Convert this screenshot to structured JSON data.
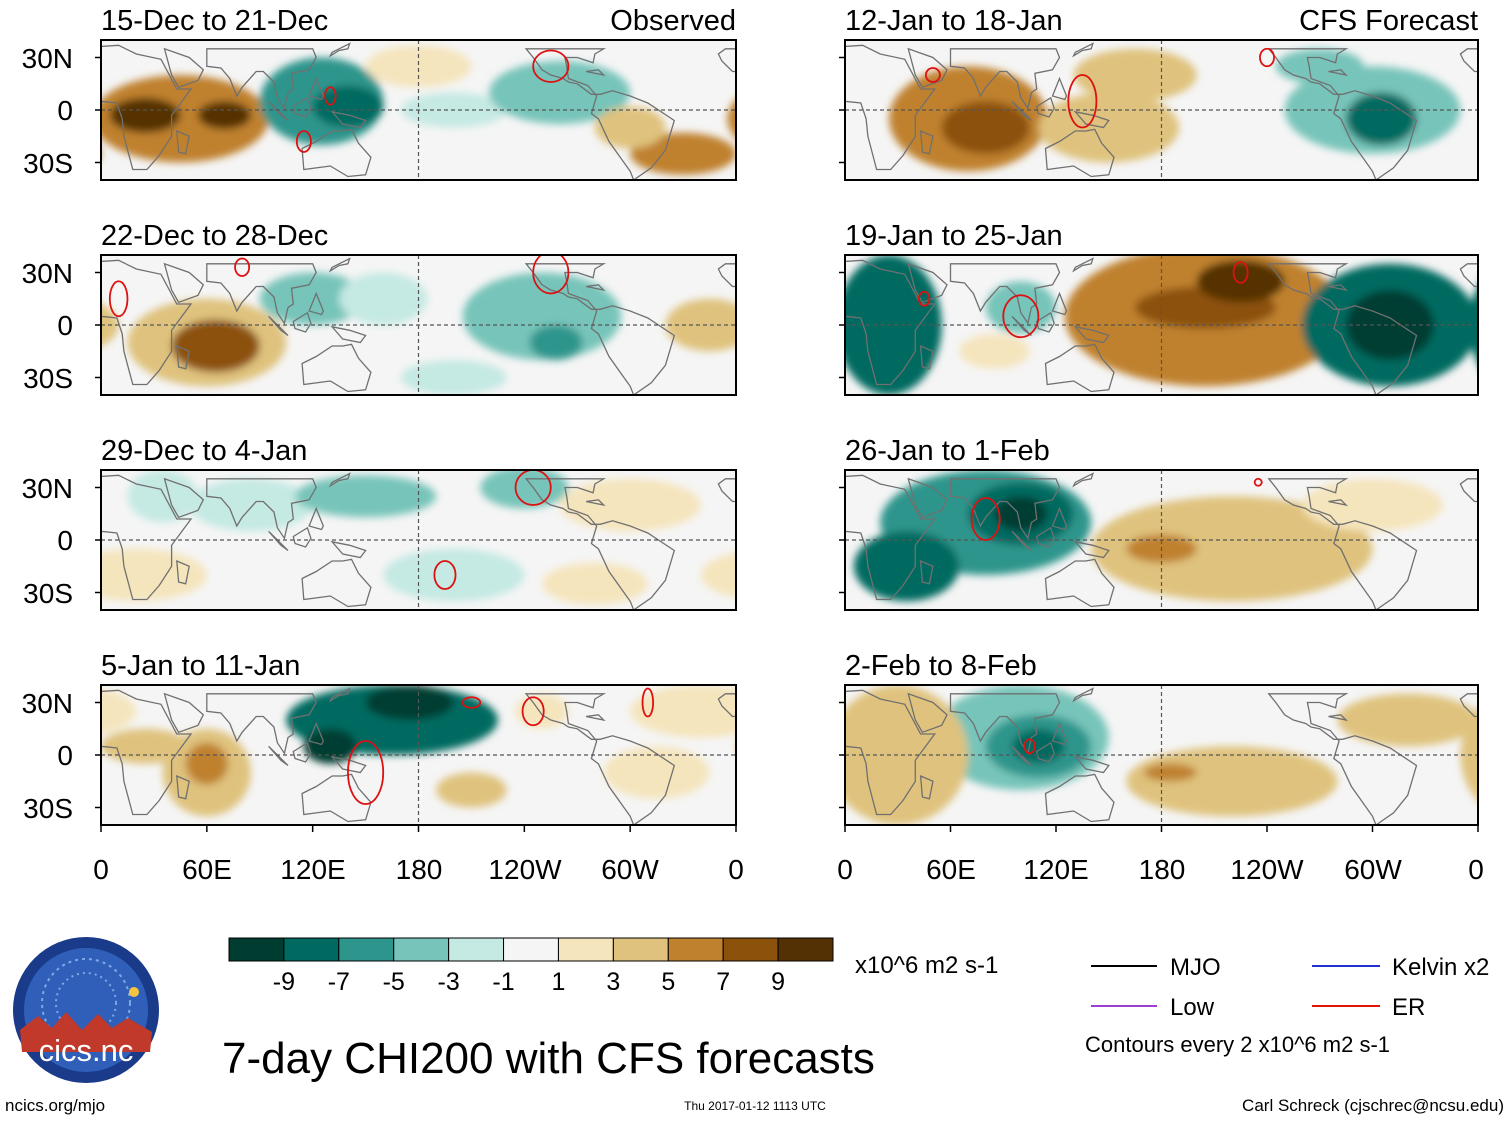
{
  "main_title": "7-day CHI200 with CFS forecasts",
  "footer": {
    "left": "ncics.org/mjo",
    "center": "Thu 2017-01-12 1113 UTC",
    "right": "Carl Schreck (cjschrec@ncsu.edu)"
  },
  "logo": {
    "text": "cics.nc",
    "ring_text": "Cooperative Institute for Climate and Satellites"
  },
  "panels": {
    "observed": [
      {
        "title": "15-Dec to 21-Dec",
        "tag": "Observed"
      },
      {
        "title": "22-Dec to 28-Dec"
      },
      {
        "title": "29-Dec to 4-Jan"
      },
      {
        "title": "5-Jan to 11-Jan"
      }
    ],
    "forecast": [
      {
        "title": "12-Jan to 18-Jan",
        "tag": "CFS Forecast"
      },
      {
        "title": "19-Jan to 25-Jan"
      },
      {
        "title": "26-Jan to 1-Feb"
      },
      {
        "title": "2-Feb to 8-Feb"
      }
    ]
  },
  "lat_labels": [
    "30N",
    "0",
    "30S"
  ],
  "lon_labels": [
    "0",
    "60E",
    "120E",
    "180",
    "120W",
    "60W",
    "0"
  ],
  "colorbar": {
    "colors": [
      "#003d30",
      "#006a60",
      "#2e958c",
      "#77c4ba",
      "#c5e9e3",
      "#f5f5f5",
      "#f5e5bd",
      "#dfc27d",
      "#bf812d",
      "#8c510a",
      "#543005"
    ],
    "labels": [
      "-9",
      "-7",
      "-5",
      "-3",
      "-1",
      "1",
      "3",
      "5",
      "7",
      "9"
    ],
    "units": "x10^6 m2 s-1"
  },
  "legend": {
    "items": [
      {
        "label": "MJO",
        "color": "#000000"
      },
      {
        "label": "Kelvin x2",
        "color": "#1f2fd0"
      },
      {
        "label": "Low",
        "color": "#9b3fd6"
      },
      {
        "label": "ER",
        "color": "#e3120b"
      }
    ],
    "contour_note": "Contours every 2 x10^6 m2 s-1"
  },
  "map_style": {
    "coast": "#707070",
    "grid": "#555555",
    "frame": "#000000",
    "feature": "#dd1111"
  },
  "maps": [
    {
      "blobs": [
        {
          "lon": 45,
          "lat": -5,
          "rx": 50,
          "ry": 25,
          "level": 8
        },
        {
          "lon": 25,
          "lat": -3,
          "rx": 20,
          "ry": 10,
          "level": 10
        },
        {
          "lon": 70,
          "lat": -3,
          "rx": 15,
          "ry": 8,
          "level": 10
        },
        {
          "lon": 125,
          "lat": 5,
          "rx": 35,
          "ry": 25,
          "level": 2
        },
        {
          "lon": 140,
          "lat": 2,
          "rx": 20,
          "ry": 12,
          "level": 1
        },
        {
          "lon": 200,
          "lat": 0,
          "rx": 30,
          "ry": 10,
          "level": 4
        },
        {
          "lon": 260,
          "lat": 10,
          "rx": 40,
          "ry": 18,
          "level": 3
        },
        {
          "lon": 330,
          "lat": -25,
          "rx": 30,
          "ry": 12,
          "level": 8
        },
        {
          "lon": 300,
          "lat": -10,
          "rx": 20,
          "ry": 12,
          "level": 7
        },
        {
          "lon": 180,
          "lat": 25,
          "rx": 30,
          "ry": 12,
          "level": 6
        }
      ],
      "features": [
        {
          "lon": 130,
          "lat": 8,
          "rx": 3,
          "ry": 5
        },
        {
          "lon": 115,
          "lat": -18,
          "rx": 4,
          "ry": 6
        },
        {
          "lon": 255,
          "lat": 25,
          "rx": 10,
          "ry": 9
        }
      ]
    },
    {
      "blobs": [
        {
          "lon": 60,
          "lat": -10,
          "rx": 45,
          "ry": 25,
          "level": 7
        },
        {
          "lon": 65,
          "lat": -12,
          "rx": 25,
          "ry": 15,
          "level": 9
        },
        {
          "lon": 120,
          "lat": 15,
          "rx": 30,
          "ry": 15,
          "level": 3
        },
        {
          "lon": 160,
          "lat": 15,
          "rx": 25,
          "ry": 15,
          "level": 4
        },
        {
          "lon": 250,
          "lat": 5,
          "rx": 45,
          "ry": 25,
          "level": 3
        },
        {
          "lon": 258,
          "lat": -10,
          "rx": 15,
          "ry": 10,
          "level": 2
        },
        {
          "lon": 200,
          "lat": -30,
          "rx": 30,
          "ry": 10,
          "level": 4
        },
        {
          "lon": 345,
          "lat": 0,
          "rx": 25,
          "ry": 15,
          "level": 7
        }
      ],
      "features": [
        {
          "lon": 10,
          "lat": 15,
          "rx": 5,
          "ry": 10
        },
        {
          "lon": 255,
          "lat": 30,
          "rx": 10,
          "ry": 12
        },
        {
          "lon": 80,
          "lat": 33,
          "rx": 4,
          "ry": 5
        }
      ]
    },
    {
      "blobs": [
        {
          "lon": 35,
          "lat": 25,
          "rx": 20,
          "ry": 15,
          "level": 4
        },
        {
          "lon": 85,
          "lat": 20,
          "rx": 35,
          "ry": 15,
          "level": 4
        },
        {
          "lon": 150,
          "lat": 25,
          "rx": 40,
          "ry": 12,
          "level": 3
        },
        {
          "lon": 240,
          "lat": 30,
          "rx": 25,
          "ry": 12,
          "level": 3
        },
        {
          "lon": 20,
          "lat": -20,
          "rx": 40,
          "ry": 15,
          "level": 6
        },
        {
          "lon": 200,
          "lat": -20,
          "rx": 40,
          "ry": 15,
          "level": 4
        },
        {
          "lon": 300,
          "lat": 20,
          "rx": 40,
          "ry": 15,
          "level": 6
        },
        {
          "lon": 280,
          "lat": -25,
          "rx": 30,
          "ry": 12,
          "level": 6
        }
      ],
      "features": [
        {
          "lon": 245,
          "lat": 30,
          "rx": 10,
          "ry": 10
        },
        {
          "lon": 195,
          "lat": -20,
          "rx": 6,
          "ry": 8
        }
      ]
    },
    {
      "blobs": [
        {
          "lon": 165,
          "lat": 20,
          "rx": 60,
          "ry": 20,
          "level": 1
        },
        {
          "lon": 175,
          "lat": 30,
          "rx": 25,
          "ry": 10,
          "level": 0
        },
        {
          "lon": 130,
          "lat": 5,
          "rx": 15,
          "ry": 10,
          "level": 0
        },
        {
          "lon": 60,
          "lat": -10,
          "rx": 25,
          "ry": 25,
          "level": 7
        },
        {
          "lon": 60,
          "lat": -5,
          "rx": 12,
          "ry": 12,
          "level": 8
        },
        {
          "lon": 25,
          "lat": 5,
          "rx": 25,
          "ry": 10,
          "level": 7
        },
        {
          "lon": 340,
          "lat": 25,
          "rx": 40,
          "ry": 15,
          "level": 6
        },
        {
          "lon": 315,
          "lat": -10,
          "rx": 30,
          "ry": 15,
          "level": 6
        },
        {
          "lon": 210,
          "lat": -20,
          "rx": 20,
          "ry": 10,
          "level": 7
        },
        {
          "lon": 250,
          "lat": 25,
          "rx": 15,
          "ry": 10,
          "level": 6
        }
      ],
      "features": [
        {
          "lon": 150,
          "lat": -10,
          "rx": 10,
          "ry": 18
        },
        {
          "lon": 210,
          "lat": 30,
          "rx": 5,
          "ry": 3
        },
        {
          "lon": 245,
          "lat": 25,
          "rx": 6,
          "ry": 8
        },
        {
          "lon": 310,
          "lat": 30,
          "rx": 3,
          "ry": 8
        }
      ]
    },
    {
      "blobs": [
        {
          "lon": 70,
          "lat": -5,
          "rx": 45,
          "ry": 30,
          "level": 8
        },
        {
          "lon": 80,
          "lat": -10,
          "rx": 25,
          "ry": 15,
          "level": 9
        },
        {
          "lon": 150,
          "lat": -10,
          "rx": 40,
          "ry": 20,
          "level": 7
        },
        {
          "lon": 165,
          "lat": 20,
          "rx": 35,
          "ry": 15,
          "level": 7
        },
        {
          "lon": 300,
          "lat": 0,
          "rx": 50,
          "ry": 25,
          "level": 3
        },
        {
          "lon": 305,
          "lat": -5,
          "rx": 20,
          "ry": 15,
          "level": 1
        },
        {
          "lon": 270,
          "lat": 25,
          "rx": 25,
          "ry": 10,
          "level": 3
        }
      ],
      "features": [
        {
          "lon": 135,
          "lat": 5,
          "rx": 8,
          "ry": 15
        },
        {
          "lon": 50,
          "lat": 20,
          "rx": 4,
          "ry": 4
        },
        {
          "lon": 240,
          "lat": 30,
          "rx": 4,
          "ry": 5
        }
      ]
    },
    {
      "blobs": [
        {
          "lon": 25,
          "lat": 0,
          "rx": 30,
          "ry": 40,
          "level": 1
        },
        {
          "lon": 205,
          "lat": 5,
          "rx": 80,
          "ry": 40,
          "level": 8
        },
        {
          "lon": 205,
          "lat": 10,
          "rx": 40,
          "ry": 12,
          "level": 9
        },
        {
          "lon": 225,
          "lat": 25,
          "rx": 25,
          "ry": 12,
          "level": 10
        },
        {
          "lon": 310,
          "lat": 0,
          "rx": 50,
          "ry": 35,
          "level": 1
        },
        {
          "lon": 310,
          "lat": 0,
          "rx": 25,
          "ry": 20,
          "level": 0
        },
        {
          "lon": 100,
          "lat": 10,
          "rx": 20,
          "ry": 15,
          "level": 3
        },
        {
          "lon": 85,
          "lat": -15,
          "rx": 20,
          "ry": 10,
          "level": 6
        }
      ],
      "features": [
        {
          "lon": 100,
          "lat": 5,
          "rx": 10,
          "ry": 12
        },
        {
          "lon": 225,
          "lat": 30,
          "rx": 4,
          "ry": 6
        },
        {
          "lon": 45,
          "lat": 15,
          "rx": 3,
          "ry": 4
        }
      ]
    },
    {
      "blobs": [
        {
          "lon": 80,
          "lat": 10,
          "rx": 60,
          "ry": 30,
          "level": 2
        },
        {
          "lon": 100,
          "lat": 15,
          "rx": 30,
          "ry": 18,
          "level": 1
        },
        {
          "lon": 100,
          "lat": 15,
          "rx": 15,
          "ry": 10,
          "level": 0
        },
        {
          "lon": 35,
          "lat": -15,
          "rx": 30,
          "ry": 20,
          "level": 1
        },
        {
          "lon": 220,
          "lat": -5,
          "rx": 80,
          "ry": 30,
          "level": 7
        },
        {
          "lon": 180,
          "lat": -5,
          "rx": 20,
          "ry": 8,
          "level": 8
        },
        {
          "lon": 300,
          "lat": 20,
          "rx": 40,
          "ry": 15,
          "level": 6
        }
      ],
      "features": [
        {
          "lon": 80,
          "lat": 12,
          "rx": 8,
          "ry": 12
        },
        {
          "lon": 235,
          "lat": 33,
          "rx": 2,
          "ry": 2
        }
      ]
    },
    {
      "blobs": [
        {
          "lon": 100,
          "lat": 10,
          "rx": 50,
          "ry": 30,
          "level": 3
        },
        {
          "lon": 110,
          "lat": 5,
          "rx": 30,
          "ry": 18,
          "level": 2
        },
        {
          "lon": 110,
          "lat": 5,
          "rx": 15,
          "ry": 10,
          "level": 1
        },
        {
          "lon": 220,
          "lat": -15,
          "rx": 60,
          "ry": 20,
          "level": 7
        },
        {
          "lon": 185,
          "lat": -10,
          "rx": 15,
          "ry": 5,
          "level": 8
        },
        {
          "lon": 30,
          "lat": 0,
          "rx": 40,
          "ry": 40,
          "level": 7
        },
        {
          "lon": 320,
          "lat": 20,
          "rx": 40,
          "ry": 15,
          "level": 7
        }
      ],
      "features": [
        {
          "lon": 105,
          "lat": 5,
          "rx": 3,
          "ry": 4
        }
      ]
    }
  ]
}
